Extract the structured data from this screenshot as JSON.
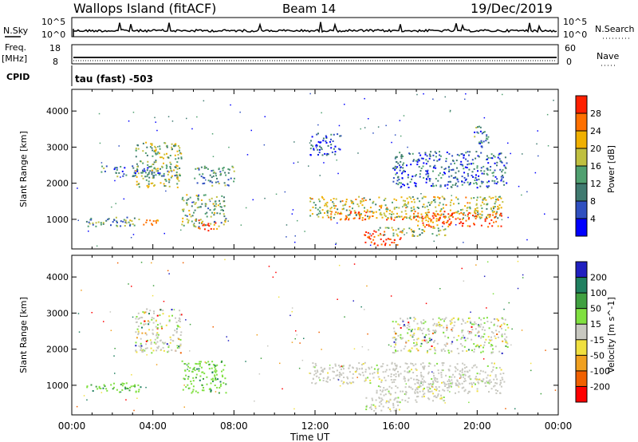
{
  "header": {
    "station": "Wallops Island (fitACF)",
    "beam": "Beam 14",
    "date": "19/Dec/2019"
  },
  "top_panels": {
    "nsky_label": "N.Sky",
    "nsearch_label": "N.Search",
    "nsky_ticks": [
      "10^5",
      "10^0"
    ],
    "nsearch_ticks": [
      "10^5",
      "10^0"
    ],
    "freq_label": "Freq.",
    "freq_unit": "[MHz]",
    "freq_ticks": [
      "18",
      "8"
    ],
    "nave_label": "Nave",
    "nave_ticks": [
      "60",
      "0"
    ],
    "cpid_label": "CPID",
    "cpid_text": "tau (fast) -503"
  },
  "chart_data": [
    {
      "type": "heatmap",
      "name": "power",
      "xlabel": "",
      "ylabel": "Slant Range [km]",
      "xlim": [
        0,
        24
      ],
      "ylim": [
        180,
        4600
      ],
      "yticks": [
        "1000",
        "2000",
        "3000",
        "4000"
      ],
      "colorbar": {
        "label": "Power [dB]",
        "ticks": [
          "4",
          "8",
          "12",
          "16",
          "20",
          "24",
          "28"
        ],
        "colors": [
          "#0000ff",
          "#3050c0",
          "#407a70",
          "#50a070",
          "#c0c040",
          "#f0b000",
          "#ff7000",
          "#ff2000"
        ]
      },
      "echo_regions": [
        {
          "t": [
            0.7,
            3.5
          ],
          "r": [
            820,
            1080
          ],
          "level": 0.35
        },
        {
          "t": [
            2.6,
            4.4
          ],
          "r": [
            850,
            1000
          ],
          "level": 0.75
        },
        {
          "t": [
            1.4,
            5.3
          ],
          "r": [
            2200,
            2500
          ],
          "level": 0.3
        },
        {
          "t": [
            3.1,
            5.4
          ],
          "r": [
            1900,
            3150
          ],
          "level": 0.5
        },
        {
          "t": [
            5.4,
            7.6
          ],
          "r": [
            800,
            1700
          ],
          "level": 0.45
        },
        {
          "t": [
            6.2,
            7.2
          ],
          "r": [
            700,
            1000
          ],
          "level": 0.85
        },
        {
          "t": [
            6.0,
            8.0
          ],
          "r": [
            1950,
            2500
          ],
          "level": 0.35
        },
        {
          "t": [
            11.7,
            21.3
          ],
          "r": [
            1050,
            1650
          ],
          "level": 0.55
        },
        {
          "t": [
            12.4,
            19.0
          ],
          "r": [
            1000,
            1250
          ],
          "level": 0.8
        },
        {
          "t": [
            14.4,
            16.2
          ],
          "r": [
            300,
            700
          ],
          "level": 0.95
        },
        {
          "t": [
            15.0,
            18.4
          ],
          "r": [
            550,
            800
          ],
          "level": 0.5
        },
        {
          "t": [
            17.0,
            21.2
          ],
          "r": [
            800,
            1200
          ],
          "level": 0.85
        },
        {
          "t": [
            15.8,
            21.5
          ],
          "r": [
            1900,
            2900
          ],
          "level": 0.25
        },
        {
          "t": [
            11.7,
            13.3
          ],
          "r": [
            2800,
            3400
          ],
          "level": 0.2
        },
        {
          "t": [
            19.8,
            20.6
          ],
          "r": [
            3000,
            3600
          ],
          "level": 0.3
        }
      ]
    },
    {
      "type": "heatmap",
      "name": "velocity",
      "xlabel": "Time UT",
      "ylabel": "Slant Range [km]",
      "xlim": [
        0,
        24
      ],
      "ylim": [
        180,
        4600
      ],
      "xticks": [
        "00:00",
        "04:00",
        "08:00",
        "12:00",
        "16:00",
        "20:00",
        "00:00"
      ],
      "yticks": [
        "1000",
        "2000",
        "3000",
        "4000"
      ],
      "colorbar": {
        "label": "Velocity [m s^-1]",
        "ticks": [
          "200",
          "100",
          "50",
          "15",
          "-15",
          "-50",
          "-100",
          "-200"
        ],
        "colors": [
          "#2020c0",
          "#208060",
          "#40a040",
          "#80e040",
          "#c8c8c0",
          "#f0e040",
          "#f0a020",
          "#f06000",
          "#ff0000"
        ]
      },
      "echo_regions": [
        {
          "t": [
            0.7,
            3.5
          ],
          "r": [
            820,
            1080
          ],
          "vel": "pos"
        },
        {
          "t": [
            3.1,
            5.4
          ],
          "r": [
            1900,
            3150
          ],
          "vel": "mixed"
        },
        {
          "t": [
            5.4,
            7.6
          ],
          "r": [
            800,
            1700
          ],
          "vel": "pos"
        },
        {
          "t": [
            11.7,
            21.3
          ],
          "r": [
            1050,
            1650
          ],
          "vel": "grey"
        },
        {
          "t": [
            14.4,
            16.2
          ],
          "r": [
            300,
            700
          ],
          "vel": "grey"
        },
        {
          "t": [
            15.0,
            18.4
          ],
          "r": [
            550,
            1000
          ],
          "vel": "grey"
        },
        {
          "t": [
            17.0,
            21.2
          ],
          "r": [
            800,
            1200
          ],
          "vel": "grey"
        },
        {
          "t": [
            15.8,
            21.5
          ],
          "r": [
            1900,
            2900
          ],
          "vel": "mixed"
        }
      ]
    }
  ]
}
